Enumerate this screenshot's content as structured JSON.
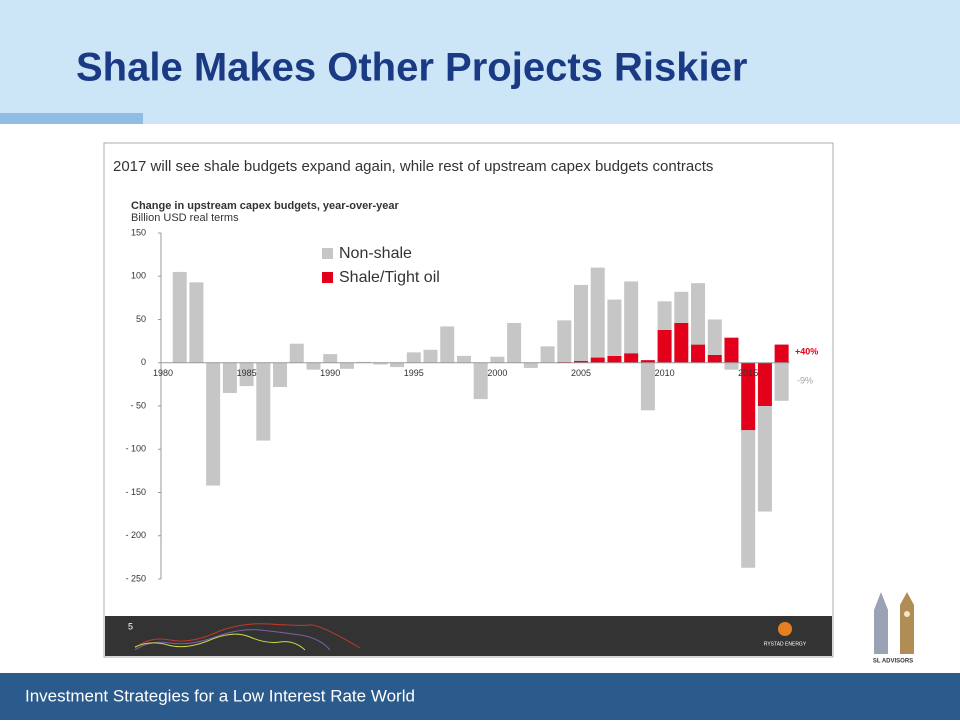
{
  "slide_title": "Shale Makes Other Projects Riskier",
  "footer": "Investment Strategies for a Low Interest Rate World",
  "logo_text": "SL ADVISORS",
  "source_bar": {
    "page": "5",
    "brand": "RYSTAD ENERGY"
  },
  "chart_data": {
    "type": "bar",
    "stacked": true,
    "title": "2017 will see shale budgets expand again, while rest of upstream capex budgets contracts",
    "subtitle": "Change in upstream capex budgets, year-over-year",
    "y_label": "Billion USD real terms",
    "categories": [
      1980,
      null,
      null,
      null,
      null,
      1985,
      null,
      null,
      null,
      null,
      1990,
      null,
      null,
      null,
      null,
      1995,
      null,
      null,
      null,
      null,
      2000,
      null,
      null,
      null,
      null,
      2005,
      null,
      null,
      null,
      null,
      2010,
      null,
      null,
      null,
      null,
      2015,
      null,
      null
    ],
    "series": [
      {
        "name": "Non-shale",
        "color": "#c6c6c6",
        "values": [
          null,
          105,
          93,
          -142,
          -35,
          -27,
          -90,
          -28,
          22,
          -8,
          10,
          -7,
          1,
          -2,
          -5,
          12,
          15,
          42,
          8,
          -42,
          7,
          46,
          -6,
          19,
          48,
          88,
          104,
          65,
          83,
          -55,
          33,
          36,
          71,
          41,
          -8,
          -159,
          -122,
          -44
        ]
      },
      {
        "name": "Shale/Tight oil",
        "color": "#e2001a",
        "values": [
          null,
          null,
          null,
          null,
          null,
          null,
          null,
          null,
          null,
          null,
          null,
          null,
          null,
          null,
          null,
          null,
          null,
          null,
          null,
          null,
          null,
          null,
          null,
          null,
          1,
          2,
          6,
          8,
          11,
          3,
          38,
          46,
          21,
          9,
          29,
          -78,
          -50,
          21
        ]
      }
    ],
    "annotations": [
      {
        "text": "+40%",
        "color": "#e2001a"
      },
      {
        "text": "-9%",
        "color": "#a0a0a0"
      }
    ],
    "ylim": [
      -250,
      150
    ],
    "yticks": [
      150,
      100,
      50,
      0,
      {
        "value": -50,
        "label": "- 50"
      },
      {
        "value": -100,
        "label": "- 100"
      },
      {
        "value": -150,
        "label": "- 150"
      },
      {
        "value": -200,
        "label": "- 200"
      },
      {
        "value": -250,
        "label": "- 250"
      }
    ],
    "legend": "top-left"
  }
}
